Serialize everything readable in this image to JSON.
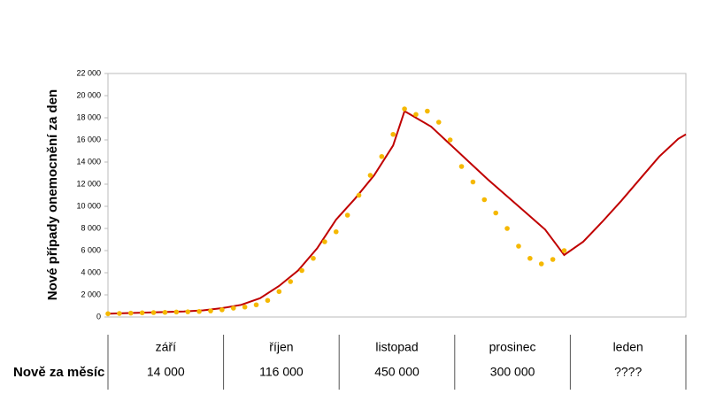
{
  "chart_data": {
    "type": "line",
    "y_label": "Nové případy onemocnění za den",
    "ylim": [
      0,
      22000
    ],
    "yticks": [
      0,
      {
        "value": 2000,
        "label": "2 000"
      },
      {
        "value": 4000,
        "label": "4 000"
      },
      {
        "value": 6000,
        "label": "6 000"
      },
      {
        "value": 8000,
        "label": "8 000"
      },
      {
        "value": 10000,
        "label": "10 000"
      },
      {
        "value": 12000,
        "label": "12 000"
      },
      {
        "value": 14000,
        "label": "14 000"
      },
      {
        "value": 16000,
        "label": "16 000"
      },
      {
        "value": 18000,
        "label": "18 000"
      },
      {
        "value": 20000,
        "label": "20 000"
      },
      {
        "value": 22000,
        "label": "22 000"
      }
    ],
    "xlim": [
      0,
      152
    ],
    "grid": false,
    "series": [
      {
        "style": "line",
        "color": "#c00000",
        "x": [
          0,
          5,
          10,
          15,
          20,
          25,
          30,
          35,
          40,
          45,
          50,
          55,
          60,
          65,
          70,
          75,
          78,
          80,
          85,
          90,
          95,
          100,
          105,
          110,
          115,
          120,
          125,
          130,
          135,
          140,
          145,
          150,
          152
        ],
        "values": [
          300,
          350,
          400,
          450,
          500,
          600,
          800,
          1100,
          1700,
          2800,
          4200,
          6200,
          8800,
          10700,
          12800,
          15500,
          18600,
          18200,
          17200,
          15600,
          14000,
          12400,
          10900,
          9400,
          7900,
          5600,
          6800,
          8600,
          10500,
          12500,
          14500,
          16100,
          16500
        ]
      },
      {
        "style": "dots",
        "color": "#f5b800",
        "x": [
          0,
          3,
          6,
          9,
          12,
          15,
          18,
          21,
          24,
          27,
          30,
          33,
          36,
          39,
          42,
          45,
          48,
          51,
          54,
          57,
          60,
          63,
          66,
          69,
          72,
          75,
          78,
          81,
          84,
          87,
          90,
          93,
          96,
          99,
          102,
          105,
          108,
          111,
          114,
          117,
          120
        ],
        "values": [
          300,
          320,
          350,
          380,
          400,
          420,
          450,
          470,
          500,
          550,
          650,
          800,
          900,
          1100,
          1500,
          2300,
          3200,
          4200,
          5300,
          6800,
          7700,
          9200,
          11000,
          12800,
          14500,
          16500,
          18800,
          18300,
          18600,
          17600,
          16000,
          13600,
          12200,
          10600,
          9400,
          8000,
          6400,
          5300,
          4800,
          5200,
          6000
        ]
      }
    ]
  },
  "table": {
    "row_label": "Nově za měsíc",
    "months": [
      "září",
      "říjen",
      "listopad",
      "prosinec",
      "leden"
    ],
    "totals": [
      "14 000",
      "116 000",
      "450 000",
      "300 000",
      "????"
    ]
  }
}
